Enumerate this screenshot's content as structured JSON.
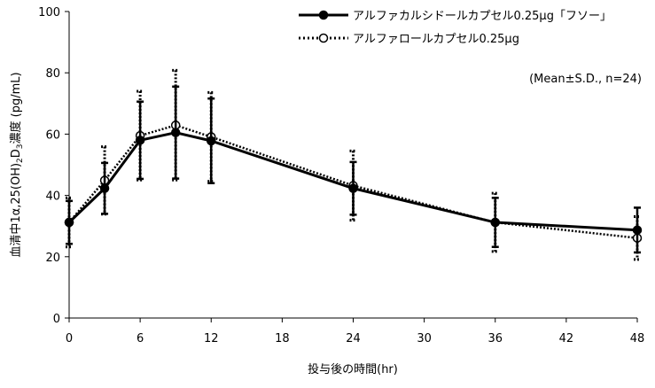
{
  "chart_data": {
    "type": "line",
    "title": "",
    "xlabel": "投与後の時間(hr)",
    "ylabel_parts": [
      "血清中1α,25(OH)",
      "2",
      "D",
      "3",
      "濃度 (pg/mL)"
    ],
    "ylim": [
      0,
      100
    ],
    "xlim": [
      0,
      48
    ],
    "y_ticks": [
      0,
      20,
      40,
      60,
      80,
      100
    ],
    "x_ticks": [
      0,
      6,
      12,
      18,
      24,
      30,
      36,
      42,
      48
    ],
    "grid": false,
    "legend_position": "top-right",
    "annotation": "(Mean±S.D., n=24)",
    "x": [
      0,
      3,
      6,
      9,
      12,
      24,
      36,
      48
    ],
    "series": [
      {
        "name": "アルファカルシドールカプセル0.25μg「フソー」",
        "style": "solid",
        "marker": "filled-circle",
        "color": "#000000",
        "values": [
          31.2,
          42.3,
          58.0,
          60.5,
          57.8,
          42.3,
          31.2,
          28.7
        ],
        "sd": [
          7.0,
          8.3,
          12.6,
          15.0,
          13.8,
          8.6,
          8.0,
          7.3
        ]
      },
      {
        "name": "アルファロールカプセル0.25μg",
        "style": "dotted",
        "marker": "open-circle",
        "color": "#000000",
        "values": [
          31.2,
          44.9,
          59.5,
          62.9,
          59.1,
          43.2,
          31.2,
          26.1
        ],
        "sd": [
          8.0,
          11.0,
          14.5,
          17.9,
          14.5,
          11.3,
          9.5,
          7.0
        ]
      }
    ]
  }
}
